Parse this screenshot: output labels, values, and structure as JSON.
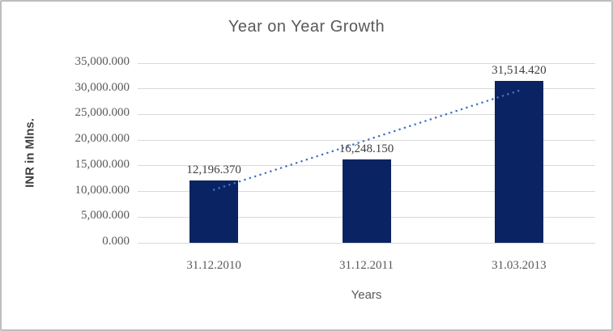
{
  "chart_data": {
    "type": "bar",
    "title": "Year on Year Growth",
    "xlabel": "Years",
    "ylabel": "INR in Mlns.",
    "categories": [
      "31.12.2010",
      "31.12.2011",
      "31.03.2013"
    ],
    "values": [
      12196.37,
      16248.15,
      31514.42
    ],
    "data_labels": [
      "12,196.370",
      "16,248.150",
      "31,514.420"
    ],
    "ylim": [
      0,
      35000
    ],
    "ytick_step": 5000,
    "ytick_labels": [
      "0.000",
      "5,000.000",
      "10,000.000",
      "15,000.000",
      "20,000.000",
      "25,000.000",
      "30,000.000",
      "35,000.000"
    ],
    "grid": true,
    "legend": "none",
    "trendline": {
      "type": "linear",
      "style": "dotted"
    },
    "colors": {
      "bar": "#0A2463",
      "trendline": "#4472C4",
      "gridline": "#D9D9D9",
      "axis_text": "#595959",
      "data_label_text": "#3F3F3F",
      "title_text": "#595959",
      "frame_border": "#BDBDBD",
      "background": "#FFFFFF"
    }
  }
}
